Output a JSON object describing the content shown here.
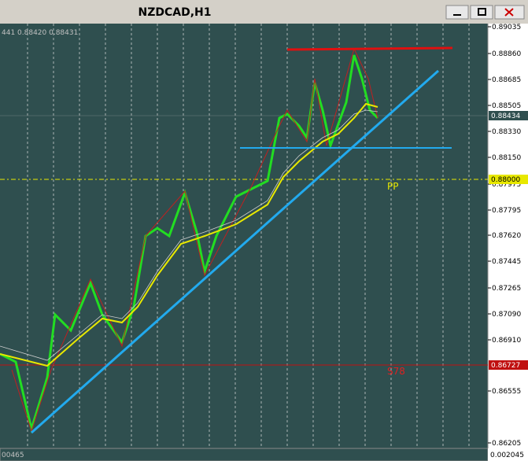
{
  "window": {
    "title": "NZDCAD,H1"
  },
  "chart": {
    "info": "441 0.88420 0.88431",
    "price_axis": [
      "0.89035",
      "0.88860",
      "0.88685",
      "0.88505",
      "0.88330",
      "0.88150",
      "0.87975",
      "0.87795",
      "0.87620",
      "0.87445",
      "0.87265",
      "0.87090",
      "0.86910",
      "0.86555",
      "0.86205"
    ],
    "price_tags": [
      "0.88434",
      "0.88000",
      "0.86727"
    ],
    "levels": [
      "PP",
      "S78"
    ]
  },
  "indicator": {
    "left_label": "00465",
    "value": "0.002045"
  }
}
